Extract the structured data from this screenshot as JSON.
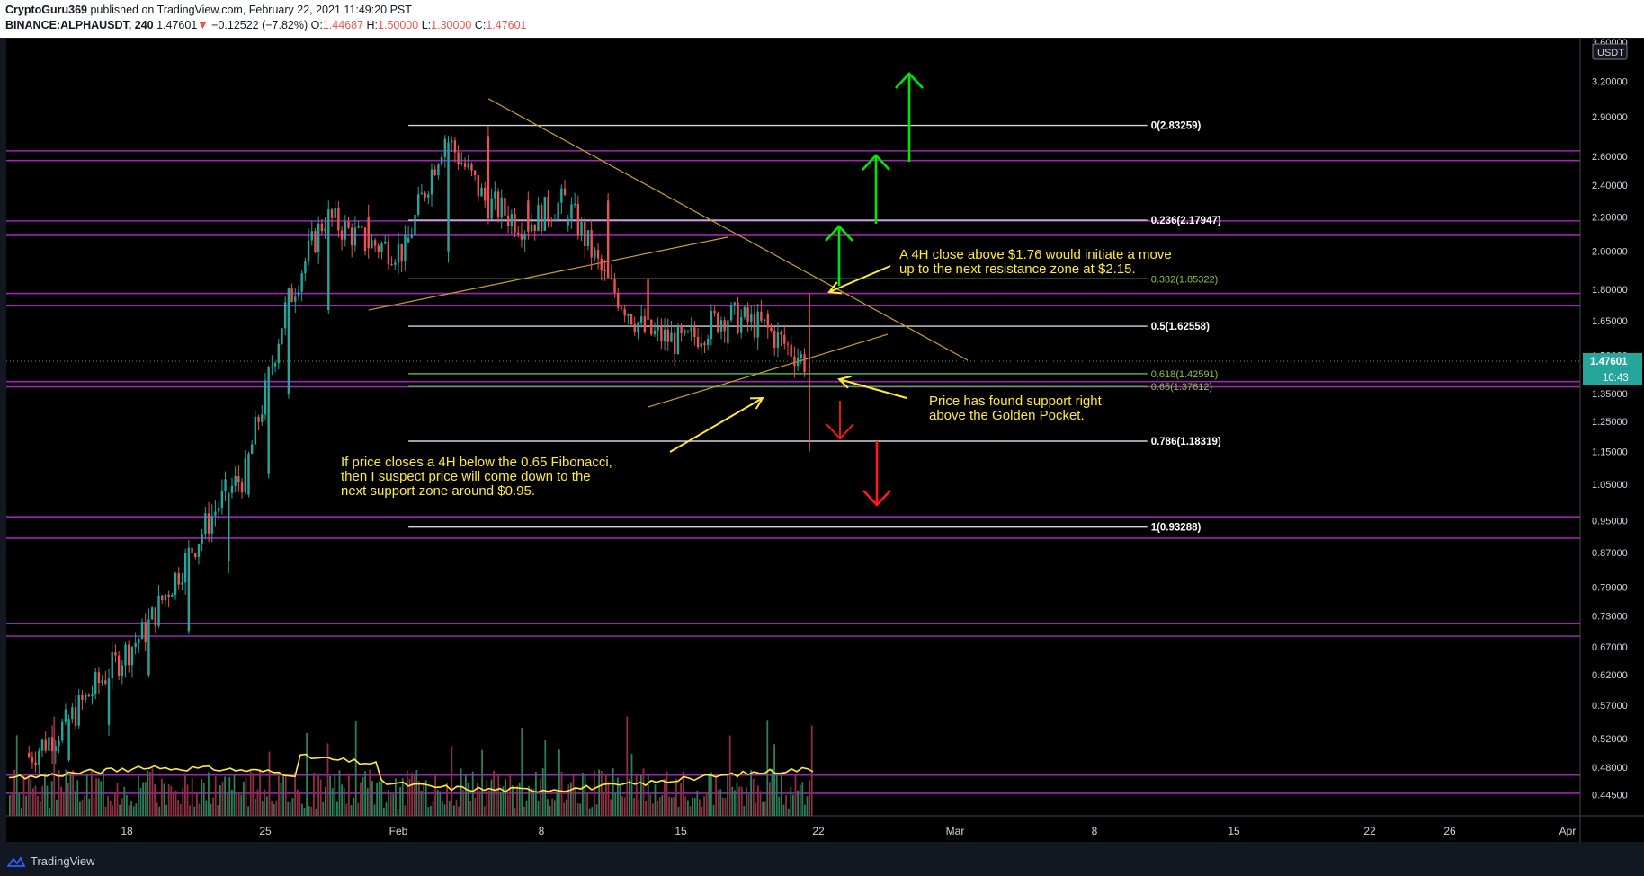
{
  "header": {
    "author": "CryptoGuru369",
    "published": "published on TradingView.com, February 22, 2021 11:49:20 PST",
    "symbol": "BINANCE:ALPHAUSDT, 240",
    "last": "1.47601",
    "change": "−0.12522 (−7.82%)",
    "o_label": "O:",
    "o_value": "1.44687",
    "h_label": "H:",
    "h_value": "1.50000",
    "l_label": "L:",
    "l_value": "1.30000",
    "c_label": "C:",
    "c_value": "1.47601"
  },
  "footer": {
    "brand": "TradingView"
  },
  "colors": {
    "background": "#000000",
    "up": "#26a69a",
    "down": "#ef5350",
    "purple_zone": "#9c27b0",
    "fib_white": "#d1d4dc",
    "fib_green": "#4caf50",
    "annotation": "#ffeb3b",
    "trendline": "#c9a227",
    "arrow_up": "#00e600",
    "arrow_down": "#ff1a1a"
  },
  "annotations": {
    "resistance_note_1": "A 4H close above $1.76 would initiate a move",
    "resistance_note_2": "up to the next resistance zone at $2.15.",
    "support_note_1": "Price has found support right",
    "support_note_2": "above the Golden Pocket.",
    "breakdown_note_1": "If price closes a 4H below the 0.65 Fibonacci,",
    "breakdown_note_2": "then I suspect price will come down to the",
    "breakdown_note_3": "next support zone around $0.95."
  },
  "chart_data": {
    "type": "candlestick",
    "symbol": "BINANCE:ALPHAUSDT",
    "interval": "240",
    "y_scale": "log",
    "y_unit": "USDT",
    "ylim": [
      0.42,
      3.6
    ],
    "y_ticks": [
      "3.60000",
      "3.20000",
      "2.90000",
      "2.60000",
      "2.40000",
      "2.20000",
      "2.00000",
      "1.80000",
      "1.65000",
      "1.50000",
      "1.35000",
      "1.25000",
      "1.15000",
      "1.05000",
      "0.95000",
      "0.87000",
      "0.79000",
      "0.73000",
      "0.67000",
      "0.62000",
      "0.57000",
      "0.52000",
      "0.48000",
      "0.44500"
    ],
    "x_ticks": [
      "18",
      "25",
      "Feb",
      "8",
      "15",
      "22",
      "Mar",
      "8",
      "15",
      "22",
      "26",
      "Apr"
    ],
    "current_price_label": "1.47601",
    "countdown_label": "10:43",
    "axis_unit_label": "USDT",
    "fibonacci_levels": [
      {
        "label": "0(2.83259)",
        "ratio": 0,
        "price": 2.83259
      },
      {
        "label": "0.236(2.17947)",
        "ratio": 0.236,
        "price": 2.17947
      },
      {
        "label": "0.382(1.85322)",
        "ratio": 0.382,
        "price": 1.85322
      },
      {
        "label": "0.5(1.62558)",
        "ratio": 0.5,
        "price": 1.62558
      },
      {
        "label": "0.618(1.42591)",
        "ratio": 0.618,
        "price": 1.42591
      },
      {
        "label": "0.65(1.37612)",
        "ratio": 0.65,
        "price": 1.37612
      },
      {
        "label": "0.786(1.18319)",
        "ratio": 0.786,
        "price": 1.18319
      },
      {
        "label": "1(0.93288)",
        "ratio": 1,
        "price": 0.93288
      }
    ],
    "horizontal_zones": [
      2.64,
      2.57,
      2.175,
      2.09,
      1.78,
      1.72,
      1.395,
      1.375,
      0.96,
      0.905,
      0.715,
      0.69,
      0.47,
      0.447
    ],
    "candles_approx": [
      {
        "date": "2021-01-14",
        "open": 0.5,
        "high": 0.52,
        "low": 0.46,
        "close": 0.49
      },
      {
        "date": "2021-01-16",
        "open": 0.49,
        "high": 0.56,
        "low": 0.48,
        "close": 0.54
      },
      {
        "date": "2021-01-18",
        "open": 0.54,
        "high": 0.64,
        "low": 0.53,
        "close": 0.62
      },
      {
        "date": "2021-01-20",
        "open": 0.62,
        "high": 0.73,
        "low": 0.6,
        "close": 0.7
      },
      {
        "date": "2021-01-22",
        "open": 0.7,
        "high": 0.86,
        "low": 0.66,
        "close": 0.85
      },
      {
        "date": "2021-01-24",
        "open": 0.85,
        "high": 1.1,
        "low": 0.8,
        "close": 1.02
      },
      {
        "date": "2021-01-25",
        "open": 1.02,
        "high": 1.12,
        "low": 0.9,
        "close": 1.08
      },
      {
        "date": "2021-01-26",
        "open": 1.08,
        "high": 1.4,
        "low": 1.05,
        "close": 1.35
      },
      {
        "date": "2021-01-27",
        "open": 1.35,
        "high": 1.82,
        "low": 1.25,
        "close": 1.7
      },
      {
        "date": "2021-01-29",
        "open": 1.7,
        "high": 2.4,
        "low": 1.45,
        "close": 2.2
      },
      {
        "date": "2021-01-31",
        "open": 2.2,
        "high": 2.35,
        "low": 1.9,
        "close": 2.05
      },
      {
        "date": "2021-02-02",
        "open": 2.05,
        "high": 2.2,
        "low": 1.83,
        "close": 2.0
      },
      {
        "date": "2021-02-04",
        "open": 2.0,
        "high": 2.95,
        "low": 1.95,
        "close": 2.75
      },
      {
        "date": "2021-02-06",
        "open": 2.75,
        "high": 2.8,
        "low": 2.2,
        "close": 2.3
      },
      {
        "date": "2021-02-08",
        "open": 2.3,
        "high": 2.6,
        "low": 2.0,
        "close": 2.15
      },
      {
        "date": "2021-02-10",
        "open": 2.15,
        "high": 2.45,
        "low": 2.0,
        "close": 2.3
      },
      {
        "date": "2021-02-12",
        "open": 2.3,
        "high": 2.35,
        "low": 1.8,
        "close": 1.85
      },
      {
        "date": "2021-02-14",
        "open": 1.85,
        "high": 1.9,
        "low": 1.35,
        "close": 1.6
      },
      {
        "date": "2021-02-16",
        "open": 1.6,
        "high": 1.75,
        "low": 1.45,
        "close": 1.55
      },
      {
        "date": "2021-02-18",
        "open": 1.55,
        "high": 1.85,
        "low": 1.5,
        "close": 1.68
      },
      {
        "date": "2021-02-20",
        "open": 1.68,
        "high": 1.8,
        "low": 1.5,
        "close": 1.62
      },
      {
        "date": "2021-02-22",
        "open": 1.62,
        "high": 1.78,
        "low": 1.15,
        "close": 1.47601
      }
    ]
  }
}
